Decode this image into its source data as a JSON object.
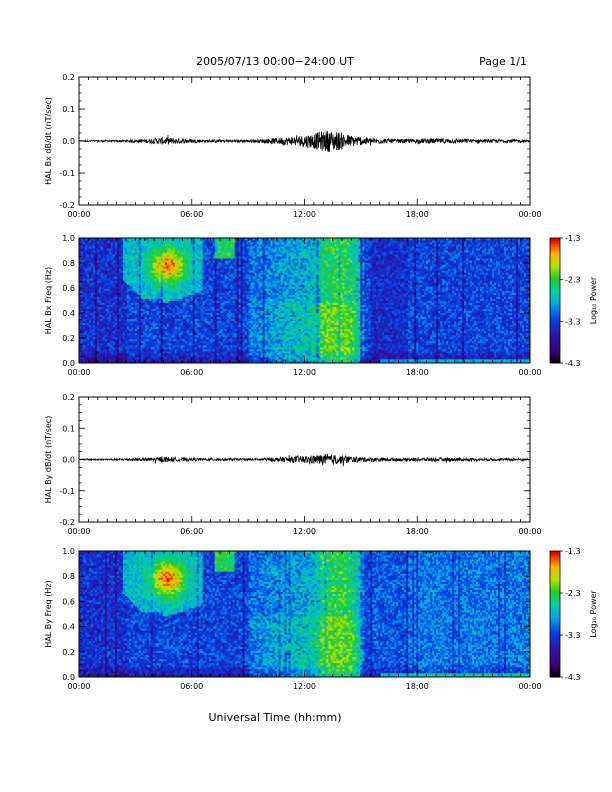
{
  "header": {
    "title": "2005/07/13  00:00−24:00 UT",
    "page": "Page 1/1"
  },
  "xlabel": "Universal Time (hh:mm)",
  "chart_data": [
    {
      "type": "line",
      "ylabel": "HAL Bx dB/dt (nT/sec)",
      "xlim": [
        0,
        24
      ],
      "ylim": [
        -0.2,
        0.2
      ],
      "xticks": [
        "00:00",
        "06:00",
        "12:00",
        "18:00",
        "00:00"
      ],
      "yticks": [
        "-0.2",
        "-0.1",
        "0.0",
        "0.1",
        "0.2"
      ],
      "envelope": {
        "x": [
          0,
          2,
          3.5,
          4.5,
          5.5,
          6.5,
          8,
          9.5,
          10.5,
          11.5,
          12.5,
          13.2,
          13.8,
          14.5,
          15.5,
          17,
          18.5,
          19.5,
          21,
          22.5,
          23.2,
          24
        ],
        "amplitude": [
          0.002,
          0.003,
          0.006,
          0.012,
          0.008,
          0.005,
          0.004,
          0.005,
          0.01,
          0.015,
          0.025,
          0.035,
          0.03,
          0.018,
          0.01,
          0.006,
          0.008,
          0.008,
          0.006,
          0.005,
          0.006,
          0.003
        ]
      }
    },
    {
      "type": "heatmap",
      "ylabel": "HAL Bx Freq (Hz)",
      "xlim": [
        0,
        24
      ],
      "ylim": [
        0,
        1.0
      ],
      "xticks": [
        "00:00",
        "06:00",
        "12:00",
        "18:00",
        "00:00"
      ],
      "yticks": [
        "0.0",
        "0.2",
        "0.4",
        "0.6",
        "0.8",
        "1.0"
      ],
      "colorbar": {
        "label": "Log₁₀ Power",
        "range": [
          -4.3,
          -1.3
        ],
        "ticks": [
          "-1.3",
          "-2.3",
          "-3.3",
          "-4.3"
        ]
      }
    },
    {
      "type": "line",
      "ylabel": "HAL By dB/dt (nT/sec)",
      "xlim": [
        0,
        24
      ],
      "ylim": [
        -0.2,
        0.2
      ],
      "xticks": [
        "00:00",
        "06:00",
        "12:00",
        "18:00",
        "00:00"
      ],
      "yticks": [
        "-0.2",
        "-0.1",
        "0.0",
        "0.1",
        "0.2"
      ],
      "envelope": {
        "x": [
          0,
          2,
          3.5,
          4.5,
          5.5,
          6.5,
          8,
          9.5,
          10.5,
          11.5,
          12.5,
          13.2,
          13.8,
          14.5,
          15.5,
          17,
          18.5,
          19.5,
          21,
          22.5,
          23.2,
          24
        ],
        "amplitude": [
          0.002,
          0.003,
          0.005,
          0.009,
          0.006,
          0.004,
          0.004,
          0.004,
          0.007,
          0.01,
          0.014,
          0.018,
          0.015,
          0.01,
          0.007,
          0.005,
          0.006,
          0.006,
          0.005,
          0.004,
          0.005,
          0.003
        ]
      }
    },
    {
      "type": "heatmap",
      "ylabel": "HAL By Freq (Hz)",
      "xlim": [
        0,
        24
      ],
      "ylim": [
        0,
        1.0
      ],
      "xticks": [
        "00:00",
        "06:00",
        "12:00",
        "18:00",
        "00:00"
      ],
      "yticks": [
        "0.0",
        "0.2",
        "0.4",
        "0.6",
        "0.8",
        "1.0"
      ],
      "colorbar": {
        "label": "Log₁₀ Power",
        "range": [
          -4.3,
          -1.3
        ],
        "ticks": [
          "-1.3",
          "-2.3",
          "-3.3",
          "-4.3"
        ]
      }
    }
  ]
}
